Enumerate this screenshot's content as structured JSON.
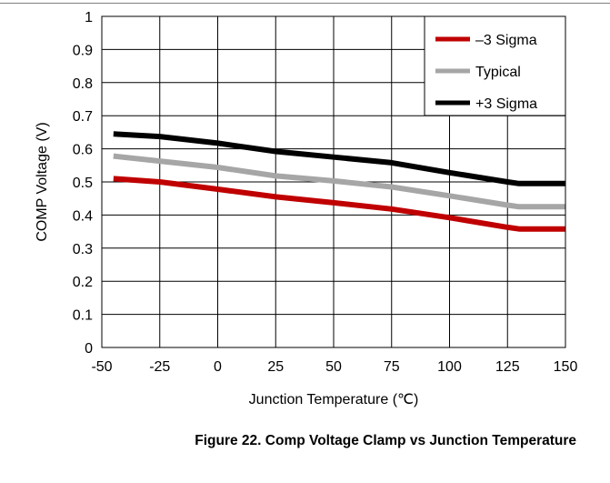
{
  "chart_data": {
    "type": "line",
    "title": "",
    "xlabel": "Junction Temperature (℃)",
    "ylabel": "COMP Voltage (V)",
    "xlim": [
      -50,
      150
    ],
    "ylim": [
      0,
      1
    ],
    "xticks": [
      "-50",
      "-25",
      "0",
      "25",
      "50",
      "75",
      "100",
      "125",
      "150"
    ],
    "xtick_values": [
      -50,
      -25,
      0,
      25,
      50,
      75,
      100,
      125,
      150
    ],
    "yticks": [
      "0",
      "0.1",
      "0.2",
      "0.3",
      "0.4",
      "0.5",
      "0.6",
      "0.7",
      "0.8",
      "0.9",
      "1"
    ],
    "ytick_values": [
      0,
      0.1,
      0.2,
      0.3,
      0.4,
      0.5,
      0.6,
      0.7,
      0.8,
      0.9,
      1
    ],
    "grid": true,
    "legend_position": "top-right",
    "x": [
      -45,
      -25,
      0,
      25,
      50,
      75,
      100,
      125,
      130,
      150
    ],
    "series": [
      {
        "name": "–3 Sigma",
        "color": "#c00000",
        "values": [
          0.51,
          0.5,
          0.478,
          0.455,
          0.437,
          0.418,
          0.392,
          0.363,
          0.358,
          0.358
        ]
      },
      {
        "name": "Typical",
        "color": "#a6a6a6",
        "values": [
          0.578,
          0.563,
          0.544,
          0.518,
          0.503,
          0.485,
          0.458,
          0.43,
          0.425,
          0.425
        ]
      },
      {
        "name": "+3 Sigma",
        "color": "#000000",
        "values": [
          0.645,
          0.637,
          0.617,
          0.592,
          0.575,
          0.558,
          0.528,
          0.5,
          0.495,
          0.495
        ]
      }
    ]
  },
  "caption": "Figure 22. Comp Voltage Clamp vs Junction Temperature"
}
